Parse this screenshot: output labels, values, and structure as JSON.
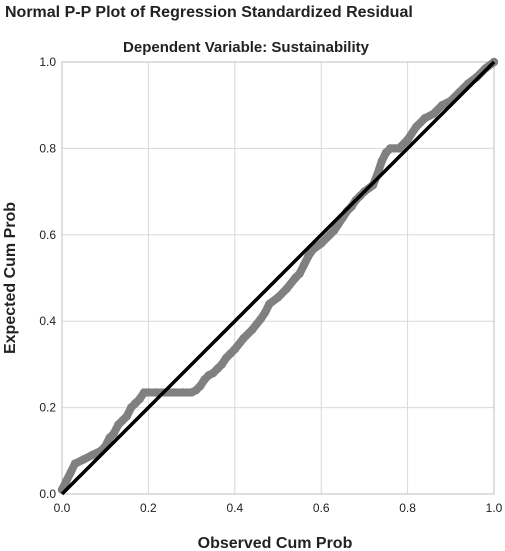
{
  "chart_data": {
    "type": "scatter",
    "title": "Normal P-P Plot of Regression Standardized Residual",
    "subtitle": "Dependent Variable: Sustainability",
    "xlabel": "Observed Cum Prob",
    "ylabel": "Expected Cum Prob",
    "xlim": [
      0,
      1
    ],
    "ylim": [
      0,
      1
    ],
    "grid": true,
    "x_ticks": [
      "0.0",
      "0.2",
      "0.4",
      "0.6",
      "0.8",
      "1.0"
    ],
    "y_ticks": [
      "0.0",
      "0.2",
      "0.4",
      "0.6",
      "0.8",
      "1.0"
    ],
    "reference_line": {
      "x": [
        0,
        1
      ],
      "y": [
        0,
        1
      ]
    },
    "series": [
      {
        "x": [
          0.0,
          0.01,
          0.02,
          0.03,
          0.05,
          0.07,
          0.09,
          0.1,
          0.11,
          0.12,
          0.13,
          0.14,
          0.15,
          0.16,
          0.17,
          0.18,
          0.19,
          0.2,
          0.22,
          0.24,
          0.26,
          0.28,
          0.3,
          0.31,
          0.32,
          0.33,
          0.34,
          0.35,
          0.36,
          0.37,
          0.38,
          0.39,
          0.4,
          0.42,
          0.44,
          0.46,
          0.47,
          0.48,
          0.5,
          0.52,
          0.54,
          0.55,
          0.56,
          0.57,
          0.58,
          0.6,
          0.62,
          0.63,
          0.64,
          0.65,
          0.66,
          0.67,
          0.68,
          0.69,
          0.7,
          0.72,
          0.73,
          0.74,
          0.75,
          0.76,
          0.77,
          0.78,
          0.8,
          0.82,
          0.84,
          0.86,
          0.88,
          0.9,
          0.92,
          0.94,
          0.96,
          0.98,
          1.0
        ],
        "y": [
          0.01,
          0.03,
          0.05,
          0.07,
          0.08,
          0.09,
          0.1,
          0.11,
          0.13,
          0.14,
          0.16,
          0.17,
          0.18,
          0.2,
          0.21,
          0.22,
          0.235,
          0.235,
          0.235,
          0.235,
          0.235,
          0.235,
          0.235,
          0.24,
          0.25,
          0.265,
          0.275,
          0.28,
          0.29,
          0.3,
          0.315,
          0.325,
          0.335,
          0.36,
          0.38,
          0.405,
          0.42,
          0.44,
          0.455,
          0.475,
          0.5,
          0.51,
          0.53,
          0.55,
          0.565,
          0.58,
          0.6,
          0.61,
          0.625,
          0.64,
          0.655,
          0.665,
          0.68,
          0.69,
          0.7,
          0.715,
          0.74,
          0.77,
          0.79,
          0.8,
          0.8,
          0.8,
          0.82,
          0.85,
          0.87,
          0.88,
          0.9,
          0.91,
          0.93,
          0.95,
          0.965,
          0.985,
          1.0
        ]
      }
    ]
  },
  "colors": {
    "observed_points": "#808080",
    "reference_line": "#000000",
    "grid": "#d9d9d9",
    "plot_border": "#bfbfbf",
    "text": "#222222"
  }
}
